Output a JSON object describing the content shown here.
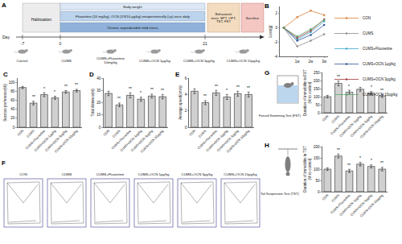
{
  "diagram": {
    "title": "A",
    "day_label": "Day",
    "days": [
      "-7",
      "0",
      "21"
    ],
    "habituation": "Habituation",
    "rows": [
      "Body weight",
      "Fluoxetine (10 mg/kg), OCN (1/3/10 μg/kg) intraperitoneally (i.p) once daily",
      "Chronic unpredictable mild stress"
    ],
    "tests": "Behavioral tests: SPT, OFT, TST, FST",
    "end": "Sacrifice",
    "groups": [
      "Control",
      "CUMS",
      "CUMS+Fluoxetine 10mg/kg",
      "CUMS+OCN 1μg/kg",
      "CUMS+OCN 3μg/kg",
      "CUMS+OCN 10μg/kg"
    ]
  },
  "tracks": {
    "title": "F",
    "labels": [
      "CON",
      "CUMS",
      "CUMS+Fluoxetine",
      "CUMS+OCN 1μg/kg",
      "CUMS+OCN 3μg/kg",
      "CUMS+OCN 10μg/kg"
    ]
  },
  "chart_data": [
    {
      "title": "B",
      "type": "line",
      "categories": [
        null,
        "1w",
        "2w",
        "3w"
      ],
      "ylabel": "Loss(g)",
      "ylim": [
        -4,
        3
      ],
      "yticks": [
        -4,
        -2,
        0,
        2
      ],
      "legend": "right",
      "marker": "circle",
      "series": [
        {
          "name": "CON",
          "color": "#d9823b",
          "values": [
            0,
            1.5,
            2.4,
            1.8
          ]
        },
        {
          "name": "CUMS",
          "color": "#8c8c8c",
          "values": [
            0,
            -2.6,
            -1.8,
            -0.9
          ]
        },
        {
          "name": "CUMS+Fluoxetine",
          "color": "#3fa7c9",
          "values": [
            0,
            -1.6,
            -0.6,
            0.9
          ]
        },
        {
          "name": "CUMS+OCN 1μg/kg",
          "color": "#2f5597",
          "values": [
            0,
            -1.8,
            -1.0,
            0.4
          ]
        },
        {
          "name": "CUMS+OCN 3μg/kg",
          "color": "#a33a3a",
          "values": [
            0,
            -1.4,
            -0.4,
            1.2
          ]
        },
        {
          "name": "CUMS+OCN 10μg/kg",
          "color": "#5fa86a",
          "values": [
            0,
            -1.2,
            -0.2,
            1.1
          ]
        }
      ]
    },
    {
      "title": "C",
      "type": "bar",
      "categories": [
        "CON",
        "CUMS",
        "CUMS+Fluoxetine",
        "CUMS+OCN 1μg/kg",
        "CUMS+OCN 3μg/kg",
        "CUMS+OCN 10μg/kg"
      ],
      "values": [
        89,
        54,
        73,
        66,
        79,
        82
      ],
      "errors": [
        2.5,
        4,
        4.5,
        3.5,
        3,
        3
      ],
      "color": "#d0d0d0",
      "ylabel": "Sucrose preference(%)",
      "ylim": [
        0,
        110
      ],
      "yticks": [
        0,
        20,
        40,
        60,
        80,
        100
      ],
      "annotations": [
        {
          "category": "CUMS",
          "text": "**"
        },
        {
          "category": "CUMS+Fluoxetine",
          "text": "*"
        },
        {
          "category": "CUMS+OCN 1μg/kg",
          "text": "*"
        },
        {
          "category": "CUMS+OCN 3μg/kg",
          "text": "**"
        },
        {
          "category": "CUMS+OCN 10μg/kg",
          "text": "**"
        }
      ]
    },
    {
      "title": "D",
      "type": "bar",
      "categories": [
        "CON",
        "CUMS",
        "CUMS+Fluoxetine",
        "CUMS+OCN 1μg/kg",
        "CUMS+OCN 3μg/kg",
        "CUMS+OCN 10μg/kg"
      ],
      "values": [
        27.5,
        18.2,
        26.0,
        22.8,
        25.4,
        24.9
      ],
      "errors": [
        1.8,
        1.5,
        2.0,
        1.7,
        1.6,
        1.8
      ],
      "color": "#d0d0d0",
      "ylabel": "Total distance(m)",
      "ylim": [
        0,
        40
      ],
      "yticks": [
        0,
        10,
        20,
        30,
        40
      ],
      "annotations": [
        {
          "category": "CUMS",
          "text": "**"
        },
        {
          "category": "CUMS+Fluoxetine",
          "text": "**"
        },
        {
          "category": "CUMS+OCN 1μg/kg",
          "text": "*"
        },
        {
          "category": "CUMS+OCN 3μg/kg",
          "text": "**"
        },
        {
          "category": "CUMS+OCN 10μg/kg",
          "text": "**"
        }
      ]
    },
    {
      "title": "E",
      "type": "bar",
      "categories": [
        "CON",
        "CUMS",
        "CUMS+Fluoxetine",
        "CUMS+OCN 1μg/kg",
        "CUMS+OCN 3μg/kg",
        "CUMS+OCN 10μg/kg"
      ],
      "values": [
        4.4,
        3.0,
        4.2,
        3.7,
        4.1,
        4.0
      ],
      "errors": [
        0.3,
        0.25,
        0.3,
        0.3,
        0.3,
        0.3
      ],
      "color": "#d0d0d0",
      "ylabel": "Average speed(cm/s)",
      "ylim": [
        0,
        6
      ],
      "yticks": [
        0,
        2,
        4,
        6
      ],
      "annotations": [
        {
          "category": "CUMS",
          "text": "**"
        },
        {
          "category": "CUMS+Fluoxetine",
          "text": "**"
        },
        {
          "category": "CUMS+OCN 1μg/kg",
          "text": "*"
        },
        {
          "category": "CUMS+OCN 3μg/kg",
          "text": "**"
        },
        {
          "category": "CUMS+OCN 10μg/kg",
          "text": "**"
        }
      ]
    },
    {
      "title": "G",
      "subtitle": "Forced Swimming Test (FST)",
      "type": "bar",
      "categories": [
        "CON",
        "CUMS",
        "CUMS+Fluoxetine",
        "CUMS+OCN 1μg/kg",
        "CUMS+OCN 3μg/kg",
        "CUMS+OCN 10μg/kg"
      ],
      "values": [
        100,
        182,
        128,
        146,
        122,
        104
      ],
      "errors": [
        8,
        15,
        12,
        12,
        10,
        9
      ],
      "color": "#d0d0d0",
      "ylabel": "Duration of immobility in FST\n(% to control)",
      "ylim": [
        0,
        250
      ],
      "yticks": [
        0,
        50,
        100,
        150,
        200,
        250
      ],
      "annotations": [
        {
          "category": "CUMS",
          "text": "**"
        },
        {
          "category": "CUMS+Fluoxetine",
          "text": "*"
        },
        {
          "category": "CUMS+OCN 3μg/kg",
          "text": "*"
        },
        {
          "category": "CUMS+OCN 10μg/kg",
          "text": "**"
        }
      ]
    },
    {
      "title": "H",
      "subtitle": "Tail Suspension Test (TST)",
      "type": "bar",
      "categories": [
        "CON",
        "CUMS",
        "CUMS+Fluoxetine",
        "CUMS+OCN 1μg/kg",
        "CUMS+OCN 3μg/kg",
        "CUMS+OCN 10μg/kg"
      ],
      "values": [
        100,
        158,
        92,
        122,
        112,
        100
      ],
      "errors": [
        6,
        9,
        7,
        8,
        7,
        8
      ],
      "color": "#d0d0d0",
      "ylabel": "Duration of immobility in TST\n(% to control)",
      "ylim": [
        0,
        200
      ],
      "yticks": [
        0,
        50,
        100,
        150,
        200
      ],
      "annotations": [
        {
          "category": "CUMS",
          "text": "**"
        },
        {
          "category": "CUMS+Fluoxetine",
          "text": "**"
        },
        {
          "category": "CUMS+OCN 1μg/kg",
          "text": "*"
        },
        {
          "category": "CUMS+OCN 3μg/kg",
          "text": "*"
        },
        {
          "category": "CUMS+OCN 10μg/kg",
          "text": "**"
        }
      ]
    }
  ]
}
